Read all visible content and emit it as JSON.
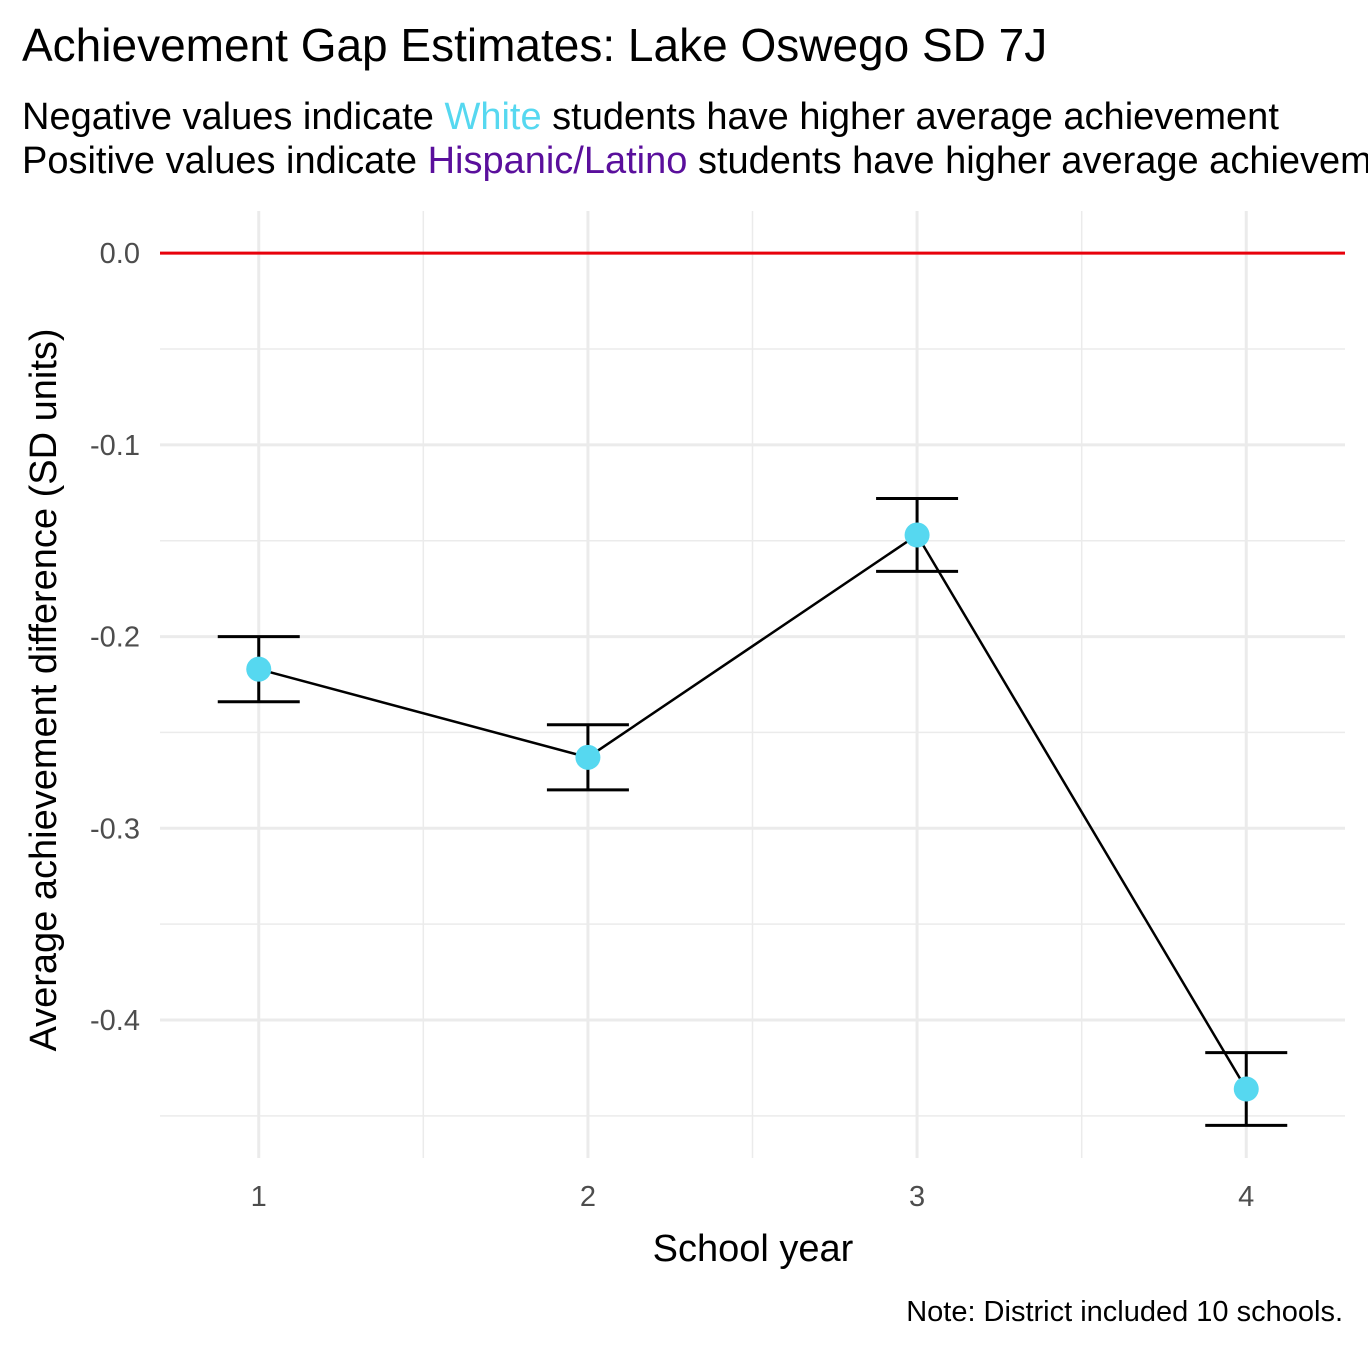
{
  "title": "Achievement Gap Estimates: Lake Oswego SD 7J",
  "subtitle": {
    "line1": {
      "before": "Negative values indicate ",
      "highlight": "White",
      "after": " students have higher average achievement"
    },
    "line2": {
      "before": "Positive values indicate ",
      "highlight": "Hispanic/Latino",
      "after": " students have higher average achievement"
    }
  },
  "colors": {
    "white_group": "#56d8f0",
    "hispanic_group": "#5a0f9c",
    "zero_line": "#e8000b",
    "points": "#56d8f0",
    "line": "#000000",
    "grid": "#ebebeb"
  },
  "caption": "Note: District included 10 schools.",
  "chart_data": {
    "type": "line",
    "xlabel": "School year",
    "ylabel": "Average achievement difference (SD units)",
    "x": [
      1,
      2,
      3,
      4
    ],
    "x_tick_labels": [
      "1",
      "2",
      "3",
      "4"
    ],
    "xlim": [
      0.7,
      4.3
    ],
    "y_ticks": [
      0.0,
      -0.1,
      -0.2,
      -0.3,
      -0.4
    ],
    "y_tick_labels": [
      "0.0",
      "-0.1",
      "-0.2",
      "-0.3",
      "-0.4"
    ],
    "ylim": [
      -0.472,
      0.022
    ],
    "reference_line": 0.0,
    "grid": true,
    "legend": "none",
    "series": [
      {
        "values": [
          -0.217,
          -0.263,
          -0.147,
          -0.436
        ],
        "ci_lower": [
          -0.234,
          -0.28,
          -0.166,
          -0.455
        ],
        "ci_upper": [
          -0.2,
          -0.246,
          -0.128,
          -0.417
        ]
      }
    ]
  }
}
